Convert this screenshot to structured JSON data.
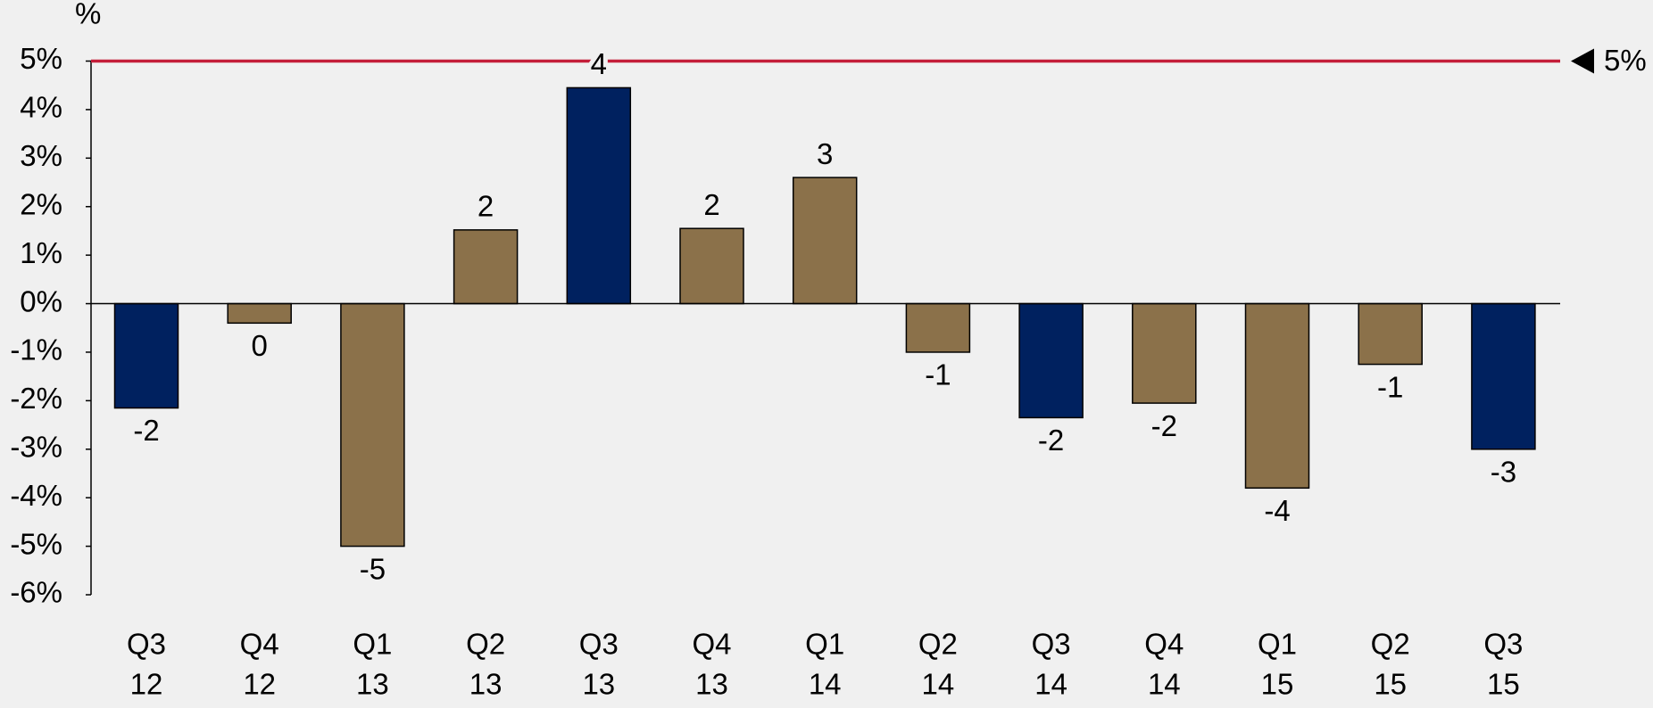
{
  "chart_data": {
    "type": "bar",
    "y_label": "%",
    "categories": [
      [
        "Q3",
        "12"
      ],
      [
        "Q4",
        "12"
      ],
      [
        "Q1",
        "13"
      ],
      [
        "Q2",
        "13"
      ],
      [
        "Q3",
        "13"
      ],
      [
        "Q4",
        "13"
      ],
      [
        "Q1",
        "14"
      ],
      [
        "Q2",
        "14"
      ],
      [
        "Q3",
        "14"
      ],
      [
        "Q4",
        "14"
      ],
      [
        "Q1",
        "15"
      ],
      [
        "Q2",
        "15"
      ],
      [
        "Q3",
        "15"
      ]
    ],
    "values": [
      -2.15,
      -0.4,
      -5.0,
      1.52,
      4.45,
      1.55,
      2.6,
      -1.0,
      -2.35,
      -2.05,
      -3.8,
      -1.25,
      -3.0
    ],
    "value_labels": [
      "-2",
      "0",
      "-5",
      "2",
      "4",
      "2",
      "3",
      "-1",
      "-2",
      "-2",
      "-4",
      "-1",
      "-3"
    ],
    "colors": [
      "#00215f",
      "#8b714a",
      "#8b714a",
      "#8b714a",
      "#00215f",
      "#8b714a",
      "#8b714a",
      "#8b714a",
      "#00215f",
      "#8b714a",
      "#8b714a",
      "#8b714a",
      "#00215f"
    ],
    "ylim": [
      -6,
      5
    ],
    "yticks": [
      {
        "value": 5,
        "label": "5%"
      },
      {
        "value": 4,
        "label": "4%"
      },
      {
        "value": 3,
        "label": "3%"
      },
      {
        "value": 2,
        "label": "2%"
      },
      {
        "value": 1,
        "label": "1%"
      },
      {
        "value": 0,
        "label": "0%"
      },
      {
        "value": -1,
        "label": "-1%"
      },
      {
        "value": -2,
        "label": "-2%"
      },
      {
        "value": -3,
        "label": "-3%"
      },
      {
        "value": -4,
        "label": "-4%"
      },
      {
        "value": -5,
        "label": "-5%"
      },
      {
        "value": -6,
        "label": "-6%"
      }
    ],
    "reference_line": {
      "value": 5,
      "label": "5%",
      "color": "#c41e3a"
    }
  }
}
